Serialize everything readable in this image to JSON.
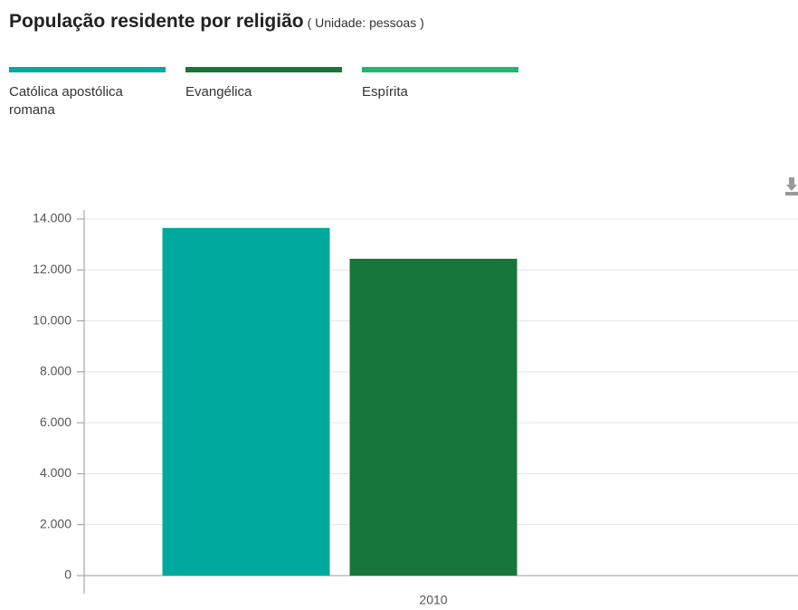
{
  "chart_data": {
    "type": "bar",
    "title": "População residente por religião",
    "subtitle": "( Unidade: pessoas )",
    "categories": [
      "2010"
    ],
    "series": [
      {
        "name": "Católica apostólica romana",
        "color": "#00a99d",
        "values": [
          13650
        ]
      },
      {
        "name": "Evangélica",
        "color": "#18753a",
        "values": [
          12440
        ]
      },
      {
        "name": "Espírita",
        "color": "#22b573",
        "values": [
          0
        ]
      }
    ],
    "ylim": [
      0,
      14000
    ],
    "yticks": [
      0,
      {
        "value": 2000,
        "label": "2.000"
      },
      {
        "value": 4000,
        "label": "4.000"
      },
      {
        "value": 6000,
        "label": "6.000"
      },
      {
        "value": 8000,
        "label": "8.000"
      },
      {
        "value": 10000,
        "label": "10.000"
      },
      {
        "value": 12000,
        "label": "12.000"
      },
      {
        "value": 14000,
        "label": "14.000"
      }
    ],
    "grid": true
  }
}
